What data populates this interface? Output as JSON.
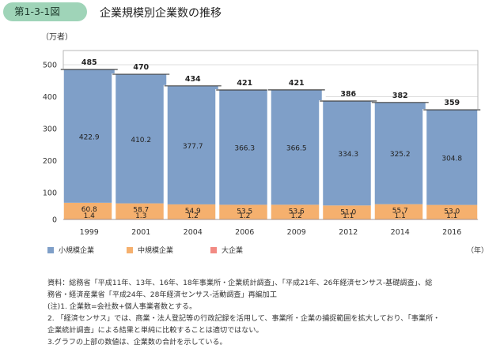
{
  "figure": {
    "label": "第1-3-1図",
    "title": "企業規模別企業数の推移"
  },
  "chart_data": {
    "type": "bar",
    "stacked": true,
    "title": "企業規模別企業数の推移",
    "ylabel": "（万者）",
    "xunit": "（年）",
    "ylim": [
      0,
      500
    ],
    "yticks": [
      0,
      100,
      200,
      300,
      400,
      500
    ],
    "categories": [
      "1999",
      "2001",
      "2004",
      "2006",
      "2009",
      "2012",
      "2014",
      "2016"
    ],
    "series": [
      {
        "name": "大企業",
        "color": "#f28a83",
        "values": [
          1.4,
          1.3,
          1.2,
          1.2,
          1.2,
          1.1,
          1.1,
          1.1
        ],
        "labels": [
          "1.4",
          "1.3",
          "1.2",
          "1.2",
          "1.2",
          "1.1",
          "1.1",
          "1.1"
        ]
      },
      {
        "name": "中規模企業",
        "color": "#f5b06e",
        "values": [
          60.8,
          58.7,
          54.9,
          53.5,
          53.6,
          51.0,
          55.7,
          53.0
        ],
        "labels": [
          "60.8",
          "58.7",
          "54.9",
          "53.5",
          "53.6",
          "51.0",
          "55.7",
          "53.0"
        ]
      },
      {
        "name": "小規模企業",
        "color": "#7f9fc8",
        "values": [
          422.9,
          410.2,
          377.7,
          366.3,
          366.5,
          334.3,
          325.2,
          304.8
        ],
        "labels": [
          "422.9",
          "410.2",
          "377.7",
          "366.3",
          "366.5",
          "334.3",
          "325.2",
          "304.8"
        ]
      }
    ],
    "totals": [
      "485",
      "470",
      "434",
      "421",
      "421",
      "386",
      "382",
      "359"
    ],
    "legend": [
      "小規模企業",
      "中規模企業",
      "大企業"
    ],
    "legend_position": "bottom-left"
  },
  "notes": [
    "資料：総務省「平成11年、13年、16年、18年事業所・企業統計調査」、「平成21年、26年経済センサス‐基礎調査」、総",
    "務省・経済産業省「平成24年、28年経済センサス‐活動調査」再編加工",
    "(注)1. 企業数=会社数+個人事業者数とする。",
    "2. 「経済センサス」では、商業・法人登記等の行政記録を活用して、事業所・企業の捕捉範囲を拡大しており、「事業所・",
    "企業統計調査」による結果と単純に比較することは適切ではない。",
    "3.グラフの上部の数値は、企業数の合計を示している。"
  ]
}
